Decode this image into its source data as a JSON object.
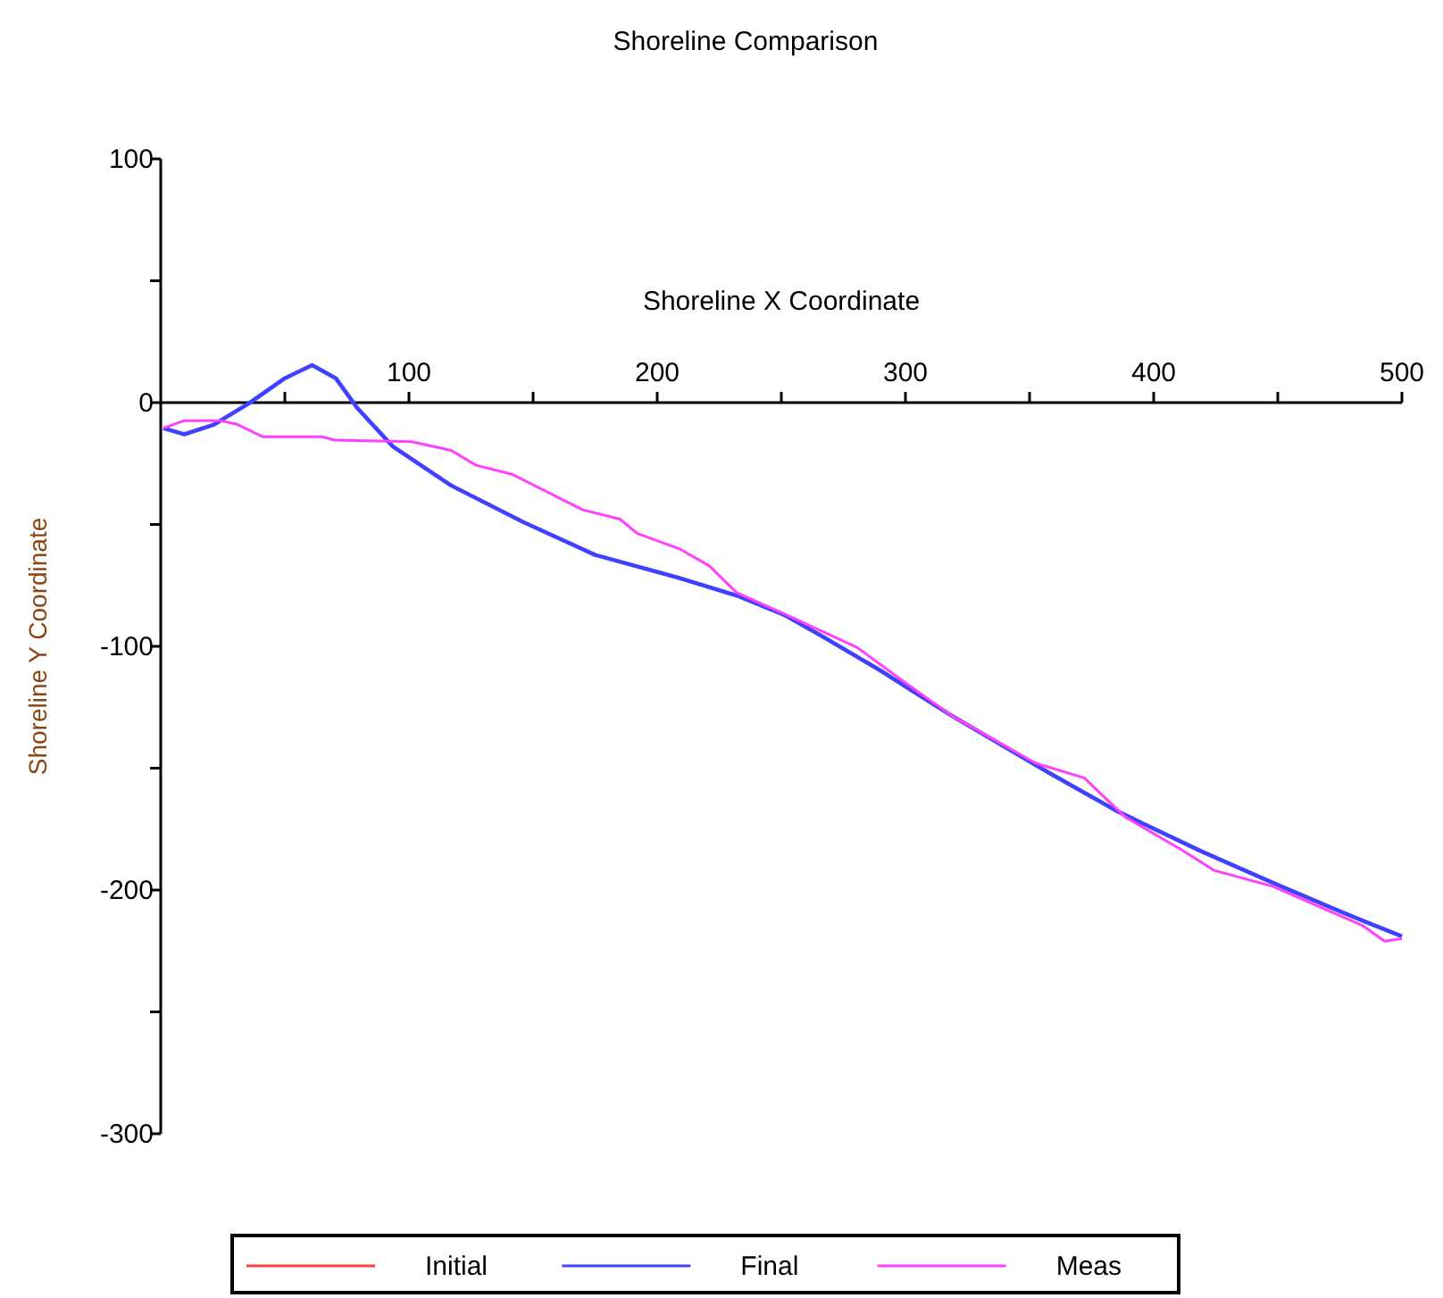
{
  "chart_data": {
    "type": "line",
    "title": "Shoreline Comparison",
    "xlabel": "Shoreline X Coordinate",
    "ylabel": "Shoreline Y Coordinate",
    "xlim": [
      0,
      500
    ],
    "ylim": [
      -300,
      100
    ],
    "xticks": [
      {
        "value": 50,
        "label": null
      },
      100,
      {
        "value": 150,
        "label": null
      },
      200,
      {
        "value": 250,
        "label": null
      },
      300,
      {
        "value": 350,
        "label": null
      },
      400,
      {
        "value": 450,
        "label": null
      },
      500
    ],
    "yticks": [
      {
        "value": -300,
        "label": "-300"
      },
      {
        "value": -250,
        "label": null
      },
      {
        "value": -200,
        "label": "-200"
      },
      {
        "value": -150,
        "label": null
      },
      {
        "value": -100,
        "label": "-100"
      },
      {
        "value": -50,
        "label": null
      },
      0,
      {
        "value": 50,
        "label": null
      },
      100
    ],
    "grid": false,
    "legend": "bottom",
    "line_style": "solid",
    "marker": "none",
    "series": [
      {
        "name": "Initial",
        "color": "#ff4040"
      },
      {
        "name": "Final",
        "color": "#4040ff",
        "x": [
          1,
          9.5,
          21.5,
          36,
          50,
          61,
          70.5,
          79,
          93.5,
          117,
          146,
          175,
          209,
          233,
          251,
          266,
          290,
          319,
          358,
          386,
          419,
          448,
          477,
          500
        ],
        "values": [
          -10.5,
          -13,
          -9,
          0,
          10,
          15.4,
          10,
          -2,
          -18,
          -34,
          -49,
          -62.5,
          -72,
          -79.5,
          -87,
          -95.6,
          -110,
          -128.7,
          -152,
          -168,
          -184,
          -197,
          -209.6,
          -219
        ]
      },
      {
        "name": "Meas",
        "color": "#ff40ff",
        "x": [
          1,
          9.5,
          24,
          31,
          41,
          65,
          70,
          101,
          117,
          127,
          141.5,
          170,
          185,
          192,
          209,
          221,
          232,
          252,
          280.6,
          300,
          319,
          352.5,
          372,
          388.5,
          412,
          424.5,
          448,
          484,
          493,
          500
        ],
        "values": [
          -10.5,
          -7.4,
          -7.4,
          -9,
          -14,
          -14,
          -15.4,
          -16,
          -19.6,
          -25.7,
          -29.4,
          -44,
          -47.8,
          -53.7,
          -60,
          -67,
          -78,
          -87,
          -100.5,
          -115,
          -128.7,
          -148,
          -154,
          -170,
          -184,
          -192,
          -198.5,
          -214.5,
          -221,
          -220
        ]
      }
    ]
  }
}
